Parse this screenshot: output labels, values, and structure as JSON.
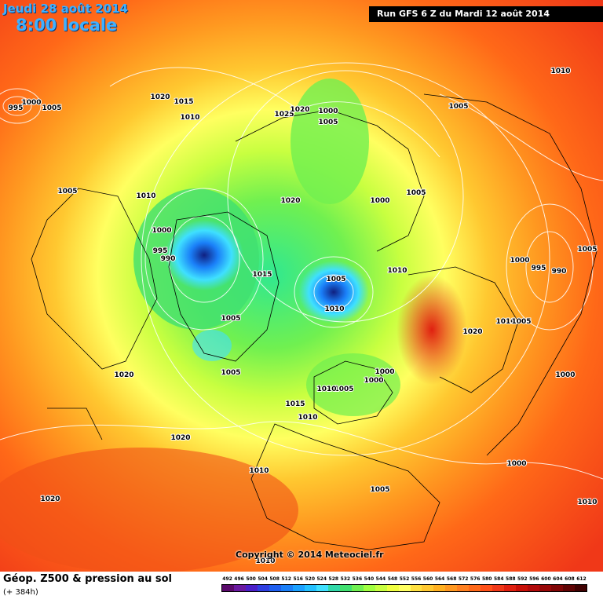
{
  "header": {
    "date": "Jeudi 28 août 2014",
    "time": "8:00 locale",
    "run": "Run GFS 6 Z du Mardi 12 août 2014"
  },
  "copyright": "Copyright © 2014 Meteociel.fr",
  "footer": {
    "title": "Géop. Z500 & pression au sol",
    "subtitle": "(+ 384h)"
  },
  "scale": {
    "labels": [
      "492",
      "496",
      "500",
      "504",
      "508",
      "512",
      "516",
      "520",
      "524",
      "528",
      "532",
      "536",
      "540",
      "544",
      "548",
      "552",
      "556",
      "560",
      "564",
      "568",
      "572",
      "576",
      "580",
      "584",
      "588",
      "592",
      "596",
      "600",
      "604",
      "608",
      "612"
    ],
    "colors": [
      "#5a0a6b",
      "#6a1aa0",
      "#4b1fc8",
      "#2f3fe0",
      "#1e5ff0",
      "#1a7ff8",
      "#1aa0ff",
      "#23c0ff",
      "#3fe0ff",
      "#30d8a8",
      "#40e070",
      "#70f050",
      "#a0ff40",
      "#c8ff40",
      "#f0ff40",
      "#ffff60",
      "#ffe040",
      "#ffc830",
      "#ffb020",
      "#ff9820",
      "#ff8020",
      "#ff6818",
      "#ff5018",
      "#f03818",
      "#e02010",
      "#c81008",
      "#b00a0a",
      "#980808",
      "#800606",
      "#600404",
      "#400202"
    ]
  },
  "isobars": [
    "995",
    "1000",
    "1005",
    "1020",
    "1015",
    "1010",
    "1025",
    "1020",
    "1000",
    "1005",
    "1010",
    "1005",
    "1010",
    "1000",
    "1020",
    "1005",
    "995",
    "990",
    "1000",
    "1005",
    "1015",
    "1005",
    "1010",
    "1000",
    "995",
    "990",
    "1005",
    "1010",
    "1020",
    "1010",
    "1005",
    "1005",
    "1000",
    "1000",
    "1020",
    "1005",
    "1000",
    "1015",
    "1005",
    "1010",
    "1010",
    "1005",
    "1020",
    "1000",
    "1010",
    "1020",
    "1010",
    "1010"
  ]
}
